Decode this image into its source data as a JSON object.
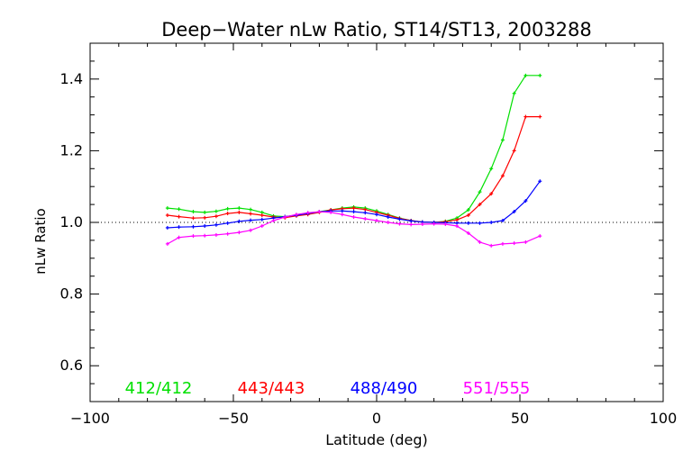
{
  "chart_data": {
    "type": "line",
    "title": "Deep−Water nLw Ratio, ST14/ST13, 2003288",
    "xlabel": "Latitude (deg)",
    "ylabel": "nLw Ratio",
    "xlim": [
      -100,
      100
    ],
    "ylim": [
      0.5,
      1.5
    ],
    "x_ticks": [
      -100,
      -50,
      0,
      50,
      100
    ],
    "x_tick_labels": [
      "−100",
      "−50",
      "0",
      "50",
      "100"
    ],
    "y_ticks": [
      0.6,
      0.8,
      1.0,
      1.2,
      1.4
    ],
    "y_tick_labels": [
      "0.6",
      "0.8",
      "1.0",
      "1.2",
      "1.4"
    ],
    "reference_line": 1.0,
    "grid": false,
    "legend_placement": "bottom-inside",
    "x": [
      -73,
      -69,
      -64,
      -60,
      -56,
      -52,
      -48,
      -44,
      -40,
      -36,
      -32,
      -28,
      -24,
      -20,
      -16,
      -12,
      -8,
      -4,
      0,
      4,
      8,
      12,
      16,
      20,
      24,
      28,
      32,
      36,
      40,
      44,
      48,
      52,
      57
    ],
    "series": [
      {
        "name": "412/412",
        "color": "#00e000",
        "values": [
          1.04,
          1.037,
          1.03,
          1.028,
          1.031,
          1.038,
          1.04,
          1.036,
          1.028,
          1.018,
          1.016,
          1.02,
          1.025,
          1.03,
          1.035,
          1.04,
          1.043,
          1.04,
          1.032,
          1.022,
          1.012,
          1.005,
          1.001,
          1.0,
          1.003,
          1.012,
          1.035,
          1.085,
          1.15,
          1.23,
          1.36,
          1.41,
          1.41
        ]
      },
      {
        "name": "443/443",
        "color": "#ff0000",
        "values": [
          1.02,
          1.016,
          1.012,
          1.013,
          1.017,
          1.025,
          1.028,
          1.024,
          1.02,
          1.015,
          1.013,
          1.018,
          1.022,
          1.028,
          1.035,
          1.038,
          1.04,
          1.036,
          1.028,
          1.02,
          1.011,
          1.005,
          1.001,
          1.0,
          1.002,
          1.007,
          1.02,
          1.05,
          1.08,
          1.13,
          1.2,
          1.295,
          1.295
        ]
      },
      {
        "name": "488/490",
        "color": "#0000ff",
        "values": [
          0.985,
          0.987,
          0.988,
          0.99,
          0.993,
          0.998,
          1.003,
          1.006,
          1.008,
          1.012,
          1.016,
          1.02,
          1.025,
          1.03,
          1.032,
          1.032,
          1.03,
          1.027,
          1.022,
          1.015,
          1.009,
          1.004,
          1.001,
          1.0,
          0.999,
          0.998,
          0.998,
          0.998,
          1.0,
          1.005,
          1.03,
          1.06,
          1.115
        ]
      },
      {
        "name": "551/555",
        "color": "#ff00ff",
        "values": [
          0.94,
          0.958,
          0.962,
          0.963,
          0.965,
          0.968,
          0.972,
          0.978,
          0.99,
          1.005,
          1.015,
          1.022,
          1.027,
          1.03,
          1.028,
          1.022,
          1.015,
          1.01,
          1.005,
          1.0,
          0.996,
          0.994,
          0.995,
          0.996,
          0.995,
          0.99,
          0.97,
          0.945,
          0.935,
          0.94,
          0.942,
          0.945,
          0.962
        ]
      }
    ]
  }
}
